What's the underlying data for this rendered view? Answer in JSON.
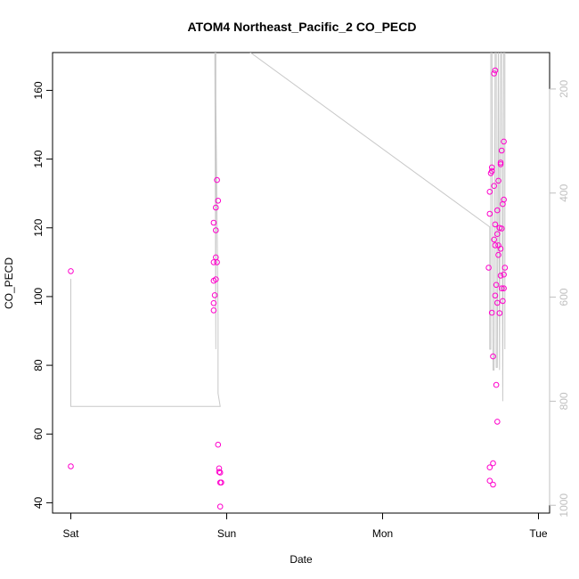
{
  "chart_data": {
    "type": "scatter",
    "title": "ATOM4 Northeast_Pacific_2 CO_PECD",
    "xlabel": "Date",
    "ylabel": "CO_PECD",
    "xlim": [
      "Sat 00:00",
      "Tue 00:00"
    ],
    "ylim": [
      37,
      171
    ],
    "x_ticks": [
      "Sat",
      "Sun",
      "Mon",
      "Tue"
    ],
    "y_ticks": [
      40,
      60,
      80,
      100,
      120,
      140,
      160
    ],
    "grid": false,
    "point_color": "#ff00cc",
    "line_color": "#c8c8c8",
    "points": [
      {
        "x": "Sat 00:00",
        "y": 107.4
      },
      {
        "x": "Sat 00:00",
        "y": 50.6
      },
      {
        "x": "Sat 22:00",
        "y": 121.5
      },
      {
        "x": "Sat 22:00",
        "y": 110.0
      },
      {
        "x": "Sat 22:00",
        "y": 104.6
      },
      {
        "x": "Sat 22:00",
        "y": 98.1
      },
      {
        "x": "Sat 22:00",
        "y": 96.0
      },
      {
        "x": "Sat 22:10",
        "y": 100.4
      },
      {
        "x": "Sat 22:20",
        "y": 111.4
      },
      {
        "x": "Sat 22:20",
        "y": 105.0
      },
      {
        "x": "Sat 22:20",
        "y": 125.9
      },
      {
        "x": "Sat 22:20",
        "y": 119.3
      },
      {
        "x": "Sat 22:30",
        "y": 110.0
      },
      {
        "x": "Sat 22:30",
        "y": 133.9
      },
      {
        "x": "Sat 22:40",
        "y": 127.9
      },
      {
        "x": "Sat 22:40",
        "y": 56.9
      },
      {
        "x": "Sat 22:50",
        "y": 50.0
      },
      {
        "x": "Sat 22:50",
        "y": 49.0
      },
      {
        "x": "Sat 23:00",
        "y": 48.8
      },
      {
        "x": "Sat 23:00",
        "y": 38.9
      },
      {
        "x": "Sat 23:00",
        "y": 45.9
      },
      {
        "x": "Sat 23:10",
        "y": 45.9
      },
      {
        "x": "Mon 16:20",
        "y": 108.4
      },
      {
        "x": "Mon 16:30",
        "y": 124.1
      },
      {
        "x": "Mon 16:30",
        "y": 130.5
      },
      {
        "x": "Mon 16:30",
        "y": 50.3
      },
      {
        "x": "Mon 16:30",
        "y": 46.4
      },
      {
        "x": "Mon 16:40",
        "y": 135.9
      },
      {
        "x": "Mon 16:50",
        "y": 137.6
      },
      {
        "x": "Mon 16:50",
        "y": 136.5
      },
      {
        "x": "Mon 16:50",
        "y": 95.3
      },
      {
        "x": "Mon 17:00",
        "y": 82.6
      },
      {
        "x": "Mon 17:00",
        "y": 45.3
      },
      {
        "x": "Mon 17:00",
        "y": 51.5
      },
      {
        "x": "Mon 17:10",
        "y": 164.9
      },
      {
        "x": "Mon 17:10",
        "y": 132.2
      },
      {
        "x": "Mon 17:10",
        "y": 116.6
      },
      {
        "x": "Mon 17:20",
        "y": 165.8
      },
      {
        "x": "Mon 17:20",
        "y": 121.0
      },
      {
        "x": "Mon 17:20",
        "y": 114.9
      },
      {
        "x": "Mon 17:30",
        "y": 103.4
      },
      {
        "x": "Mon 17:20",
        "y": 100.3
      },
      {
        "x": "Mon 17:30",
        "y": 74.3
      },
      {
        "x": "Mon 17:40",
        "y": 125.1
      },
      {
        "x": "Mon 17:40",
        "y": 118.2
      },
      {
        "x": "Mon 17:40",
        "y": 98.2
      },
      {
        "x": "Mon 17:40",
        "y": 63.6
      },
      {
        "x": "Mon 17:50",
        "y": 133.7
      },
      {
        "x": "Mon 17:50",
        "y": 114.9
      },
      {
        "x": "Mon 17:50",
        "y": 112.1
      },
      {
        "x": "Mon 18:00",
        "y": 95.2
      },
      {
        "x": "Mon 18:00",
        "y": 120.0
      },
      {
        "x": "Mon 18:10",
        "y": 139.0
      },
      {
        "x": "Mon 18:10",
        "y": 138.5
      },
      {
        "x": "Mon 18:10",
        "y": 113.9
      },
      {
        "x": "Mon 18:10",
        "y": 106.1
      },
      {
        "x": "Mon 18:20",
        "y": 142.5
      },
      {
        "x": "Mon 18:20",
        "y": 102.4
      },
      {
        "x": "Mon 18:20",
        "y": 119.8
      },
      {
        "x": "Mon 18:30",
        "y": 126.9
      },
      {
        "x": "Mon 18:30",
        "y": 98.7
      },
      {
        "x": "Mon 18:40",
        "y": 145.1
      },
      {
        "x": "Mon 18:40",
        "y": 128.2
      },
      {
        "x": "Mon 18:40",
        "y": 106.4
      },
      {
        "x": "Mon 18:40",
        "y": 102.4
      },
      {
        "x": "Mon 18:50",
        "y": 108.4
      }
    ],
    "secondary_axis": {
      "side": "right",
      "ticks": [
        200,
        400,
        600,
        800,
        1000
      ],
      "ylim": [
        1015,
        130
      ],
      "color": "#c0c0c0",
      "profile": [
        {
          "x": "Sat 00:00",
          "y": 565
        },
        {
          "x": "Sat 00:00",
          "y": 640
        },
        {
          "x": "Sat 00:00",
          "y": 810
        },
        {
          "x": "Sat 23:00",
          "y": 810
        },
        {
          "x": "Sat 22:40",
          "y": 785
        },
        {
          "x": "Sat 22:40",
          "y": 640
        },
        {
          "x": "Sat 22:20",
          "y": 220
        },
        {
          "x": "Sat 22:10",
          "y": 100
        },
        {
          "x": "Sat 22:20",
          "y": 100
        },
        {
          "x": "Sat 22:20",
          "y": 400
        },
        {
          "x": "Sat 22:20",
          "y": 700
        },
        {
          "x": "Sat 22:10",
          "y": 80
        },
        {
          "x": "Mon 16:30",
          "y": 465
        },
        {
          "x": "Mon 16:30",
          "y": 700
        },
        {
          "x": "Mon 16:40",
          "y": 700
        },
        {
          "x": "Mon 16:40",
          "y": 100
        },
        {
          "x": "Mon 16:50",
          "y": 100
        },
        {
          "x": "Mon 17:00",
          "y": 740
        },
        {
          "x": "Mon 17:10",
          "y": 740
        },
        {
          "x": "Mon 17:20",
          "y": 100
        },
        {
          "x": "Mon 17:30",
          "y": 100
        },
        {
          "x": "Mon 17:30",
          "y": 735
        },
        {
          "x": "Mon 17:40",
          "y": 735
        },
        {
          "x": "Mon 17:50",
          "y": 100
        },
        {
          "x": "Mon 18:00",
          "y": 740
        },
        {
          "x": "Mon 18:00",
          "y": 740
        },
        {
          "x": "Mon 18:10",
          "y": 100
        },
        {
          "x": "Mon 18:20",
          "y": 100
        },
        {
          "x": "Mon 18:30",
          "y": 800
        },
        {
          "x": "Mon 18:40",
          "y": 100
        },
        {
          "x": "Mon 18:50",
          "y": 100
        },
        {
          "x": "Mon 18:50",
          "y": 240
        },
        {
          "x": "Mon 18:50",
          "y": 700
        }
      ]
    }
  }
}
